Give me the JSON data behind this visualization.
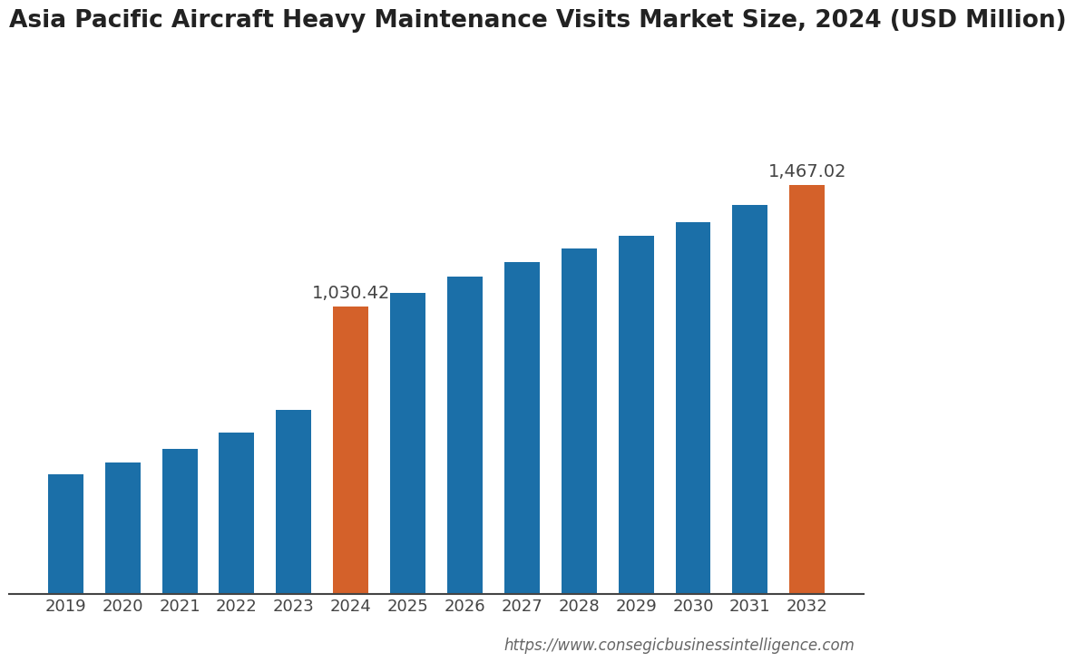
{
  "title": "Asia Pacific Aircraft Heavy Maintenance Visits Market Size, 2024 (USD Million)",
  "categories": [
    "2019",
    "2020",
    "2021",
    "2022",
    "2023",
    "2024",
    "2025",
    "2026",
    "2027",
    "2028",
    "2029",
    "2030",
    "2031",
    "2032"
  ],
  "values": [
    430,
    470,
    520,
    580,
    660,
    1030.42,
    1080,
    1140,
    1190,
    1240,
    1285,
    1335,
    1395,
    1467.02
  ],
  "bar_colors": [
    "#1B6FA8",
    "#1B6FA8",
    "#1B6FA8",
    "#1B6FA8",
    "#1B6FA8",
    "#D4612A",
    "#1B6FA8",
    "#1B6FA8",
    "#1B6FA8",
    "#1B6FA8",
    "#1B6FA8",
    "#1B6FA8",
    "#1B6FA8",
    "#D4612A"
  ],
  "labeled_bars": [
    5,
    13
  ],
  "bar_labels": [
    "1,030.42",
    "1,467.02"
  ],
  "url_text": "https://www.consegicbusinessintelligence.com",
  "background_color": "#FFFFFF",
  "title_fontsize": 19,
  "label_fontsize": 14,
  "tick_fontsize": 13,
  "url_fontsize": 12,
  "ylim": [
    0,
    1900
  ]
}
